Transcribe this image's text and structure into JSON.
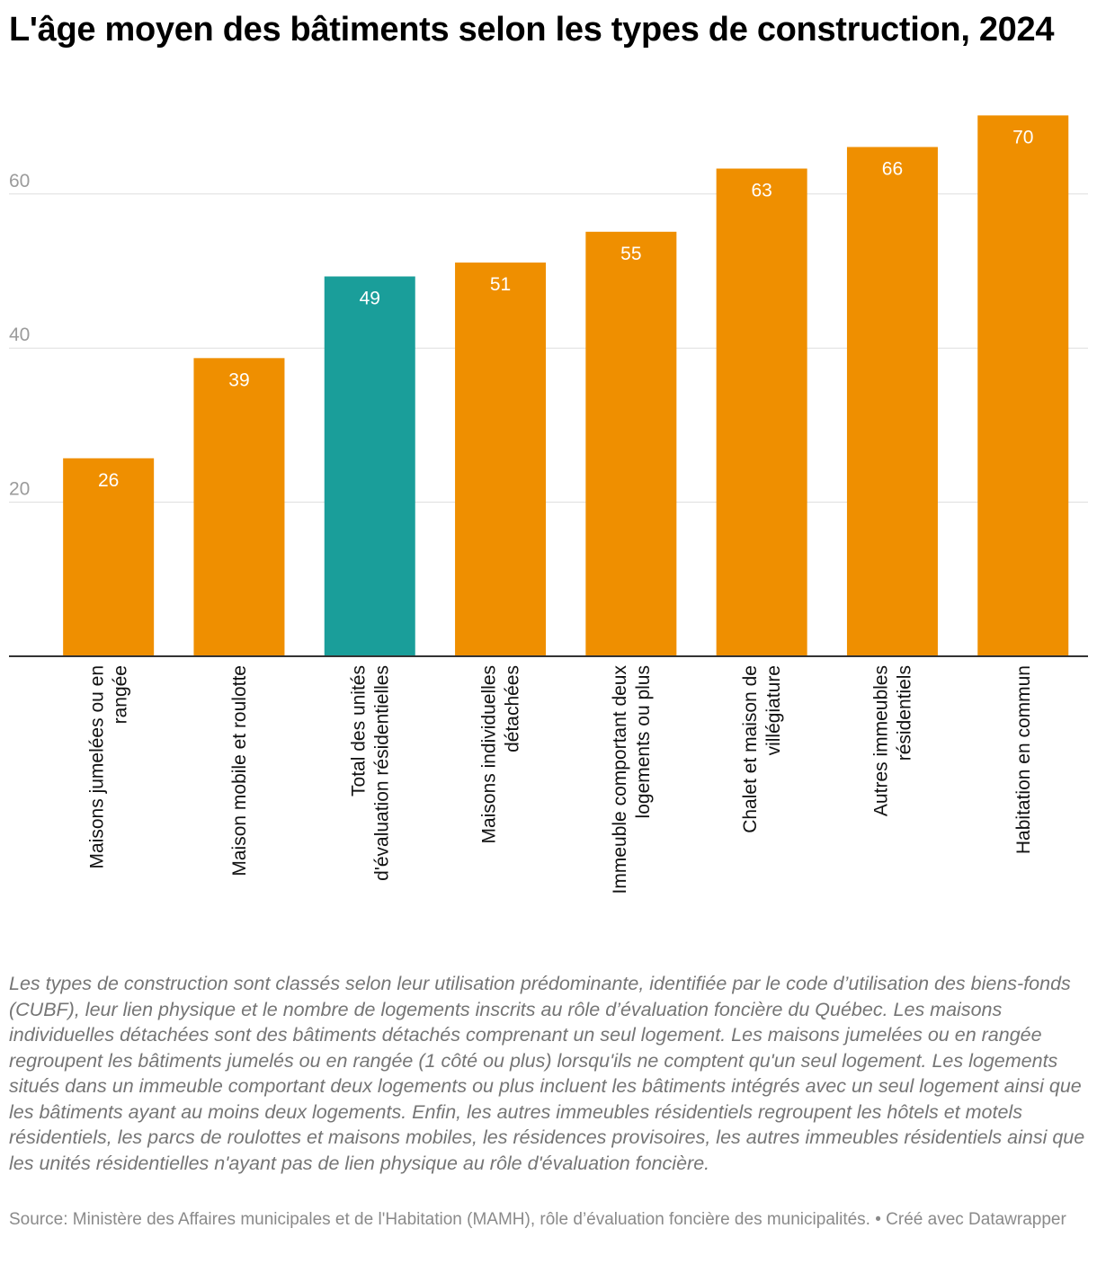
{
  "title": "L'âge moyen des bâtiments selon les types de construction, 2024",
  "chart_data": {
    "type": "bar",
    "title": "L'âge moyen des bâtiments selon les types de construction, 2024",
    "categories": [
      [
        "Maisons jumelées ou en",
        "rangée"
      ],
      [
        "Maison mobile et roulotte"
      ],
      [
        "Total des unités",
        "d'évaluation résidentielles"
      ],
      [
        "Maisons individuelles",
        "détachées"
      ],
      [
        "Immeuble comportant deux",
        "logements ou plus"
      ],
      [
        "Chalet et maison de",
        "villégiature"
      ],
      [
        "Autres immeubles",
        "résidentiels"
      ],
      [
        "Habitation en commun"
      ]
    ],
    "values": [
      25.7,
      38.7,
      49.3,
      51.1,
      55.1,
      63.3,
      66.1,
      70.2
    ],
    "labels": [
      "26",
      "39",
      "49",
      "51",
      "55",
      "63",
      "66",
      "70"
    ],
    "highlight_index": 2,
    "ylim": [
      0,
      72
    ],
    "yticks": [
      20,
      40,
      60
    ],
    "grid": true,
    "colors": {
      "bar": "#ef8f00",
      "highlight": "#1a9e9a",
      "grid": "#dddddd",
      "tick": "#9b9b9b"
    }
  },
  "notes": "Les types de construction sont classés selon leur utilisation prédominante, identifiée par le code d’utilisation des biens-fonds (CUBF), leur lien physique et le nombre de logements inscrits au rôle d’évaluation foncière du Québec. Les maisons individuelles détachées sont des bâtiments détachés comprenant un seul logement. Les maisons jumelées ou en rangée regroupent les bâtiments jumelés ou en rangée (1 côté ou plus) lorsqu'ils ne comptent qu'un seul logement. Les logements situés dans un immeuble comportant deux logements ou plus incluent les bâtiments intégrés avec un seul logement ainsi que les bâtiments ayant au moins deux logements. Enfin, les autres immeubles résidentiels regroupent les hôtels et motels résidentiels, les parcs de roulottes et maisons mobiles, les résidences provisoires, les autres immeubles résidentiels ainsi que les unités résidentielles n'ayant pas de lien physique au rôle d'évaluation foncière.",
  "source": "Source: Ministère des Affaires municipales et de l'Habitation (MAMH), rôle d’évaluation foncière des municipalités. • Créé avec Datawrapper"
}
